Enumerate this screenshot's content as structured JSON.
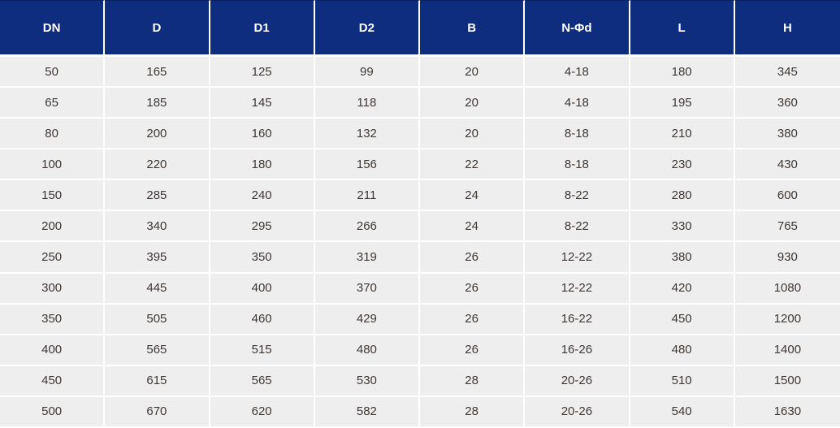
{
  "theme": {
    "header_bg": "#0e2d7e",
    "header_text": "#ffffff",
    "row_bg": "#efeeee",
    "grid_color": "#ffffff",
    "body_text": "#3e3835"
  },
  "table": {
    "columns": [
      "DN",
      "D",
      "D1",
      "D2",
      "B",
      "N-Φd",
      "L",
      "H"
    ],
    "rows": [
      [
        "50",
        "165",
        "125",
        "99",
        "20",
        "4-18",
        "180",
        "345"
      ],
      [
        "65",
        "185",
        "145",
        "118",
        "20",
        "4-18",
        "195",
        "360"
      ],
      [
        "80",
        "200",
        "160",
        "132",
        "20",
        "8-18",
        "210",
        "380"
      ],
      [
        "100",
        "220",
        "180",
        "156",
        "22",
        "8-18",
        "230",
        "430"
      ],
      [
        "150",
        "285",
        "240",
        "211",
        "24",
        "8-22",
        "280",
        "600"
      ],
      [
        "200",
        "340",
        "295",
        "266",
        "24",
        "8-22",
        "330",
        "765"
      ],
      [
        "250",
        "395",
        "350",
        "319",
        "26",
        "12-22",
        "380",
        "930"
      ],
      [
        "300",
        "445",
        "400",
        "370",
        "26",
        "12-22",
        "420",
        "1080"
      ],
      [
        "350",
        "505",
        "460",
        "429",
        "26",
        "16-22",
        "450",
        "1200"
      ],
      [
        "400",
        "565",
        "515",
        "480",
        "26",
        "16-26",
        "480",
        "1400"
      ],
      [
        "450",
        "615",
        "565",
        "530",
        "28",
        "20-26",
        "510",
        "1500"
      ],
      [
        "500",
        "670",
        "620",
        "582",
        "28",
        "20-26",
        "540",
        "1630"
      ]
    ]
  }
}
